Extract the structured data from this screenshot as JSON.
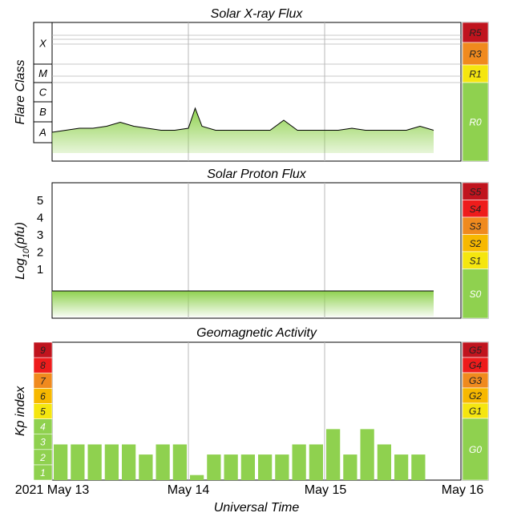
{
  "panels": {
    "xray": {
      "title": "Solar X-ray Flux",
      "ylabel": "Flare Class"
    },
    "proton": {
      "title": "Solar Proton Flux",
      "ylabel": "Log10(pfu)"
    },
    "kp": {
      "title": "Geomagnetic Activity",
      "ylabel": "Kp index"
    }
  },
  "xaxis": {
    "title": "Universal Time",
    "ticks": [
      "2021 May 13",
      "May 14",
      "May 15",
      "May 16"
    ]
  },
  "colors": {
    "bar_green": "#8fd14f",
    "R5": "#c0141e",
    "R4_S4_G4": "#ee1c1c",
    "orange": "#f08a1e",
    "amber": "#f7b800",
    "yellow": "#f5e60f",
    "green": "#8fd14f",
    "line": "#000000",
    "grid": "#b8b8b8"
  },
  "chart_data": [
    {
      "type": "area",
      "title": "Solar X-ray Flux",
      "ylabel": "Flare Class",
      "y_categories": [
        "A",
        "B",
        "C",
        "M",
        "X"
      ],
      "x_range_days": [
        0,
        3
      ],
      "x": [
        0.0,
        0.1,
        0.2,
        0.3,
        0.4,
        0.5,
        0.6,
        0.7,
        0.8,
        0.9,
        1.0,
        1.05,
        1.1,
        1.2,
        1.3,
        1.4,
        1.5,
        1.6,
        1.7,
        1.8,
        1.9,
        2.0,
        2.1,
        2.2,
        2.3,
        2.4,
        2.5,
        2.6,
        2.7,
        2.8
      ],
      "values": [
        2.0,
        2.1,
        2.2,
        2.2,
        2.3,
        2.5,
        2.3,
        2.2,
        2.1,
        2.1,
        2.2,
        3.2,
        2.3,
        2.1,
        2.1,
        2.1,
        2.1,
        2.1,
        2.6,
        2.1,
        2.1,
        2.1,
        2.1,
        2.2,
        2.1,
        2.1,
        2.1,
        2.1,
        2.3,
        2.1
      ],
      "value_scale": "flare-class index (A=2, B=3, C=4, M=5, X=6)",
      "scale_labels": [
        "R5",
        "R3",
        "R1",
        "R0"
      ],
      "scale_colors": [
        "#c0141e",
        "#f08a1e",
        "#f5e60f",
        "#8fd14f"
      ]
    },
    {
      "type": "area",
      "title": "Solar Proton Flux",
      "ylabel": "Log10(pfu)",
      "y_ticks": [
        1,
        2,
        3,
        4,
        5
      ],
      "ylim": [
        -1.5,
        6
      ],
      "x_range_days": [
        0,
        3
      ],
      "value_approx": -0.4,
      "scale_labels": [
        "S5",
        "S4",
        "S3",
        "S2",
        "S1",
        "S0"
      ],
      "scale_colors": [
        "#c0141e",
        "#ee1c1c",
        "#f08a1e",
        "#f7b800",
        "#f5e60f",
        "#8fd14f"
      ]
    },
    {
      "type": "bar",
      "title": "Geomagnetic Activity",
      "ylabel": "Kp index",
      "xlabel": "Universal Time",
      "x_range_days": [
        0,
        3
      ],
      "ylim": [
        0,
        9
      ],
      "y_ticks": [
        1,
        2,
        3,
        4,
        5,
        6,
        7,
        8,
        9
      ],
      "interval_hours": 3,
      "values": [
        2.33,
        2.33,
        2.33,
        2.33,
        2.33,
        1.67,
        2.33,
        2.33,
        0.33,
        1.67,
        1.67,
        1.67,
        1.67,
        1.67,
        2.33,
        2.33,
        3.33,
        1.67,
        3.33,
        2.33,
        1.67,
        1.67
      ],
      "scale_labels": [
        "G5",
        "G4",
        "G3",
        "G2",
        "G1",
        "G0"
      ],
      "scale_colors": [
        "#c0141e",
        "#ee1c1c",
        "#f08a1e",
        "#f7b800",
        "#f5e60f",
        "#8fd14f"
      ]
    }
  ]
}
